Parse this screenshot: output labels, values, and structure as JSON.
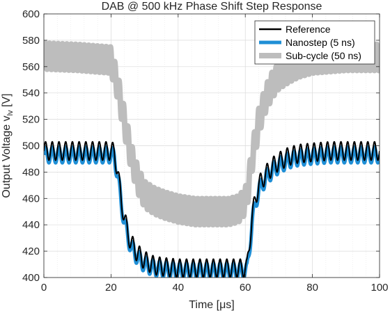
{
  "chart_data": {
    "type": "line",
    "title": "DAB @ 500 kHz Phase Shift Step Response",
    "xlabel": "Time [μs]",
    "ylabel": "Output Voltage v",
    "ylabel_subscript": "lv",
    "ylabel_unit": " [V]",
    "xlim": [
      0,
      100
    ],
    "ylim": [
      400,
      600
    ],
    "xticks": [
      0,
      20,
      40,
      60,
      80,
      100
    ],
    "yticks": [
      400,
      420,
      440,
      460,
      480,
      500,
      520,
      540,
      560,
      580,
      600
    ],
    "grid": true,
    "legend_position": "top-right",
    "series": [
      {
        "name": "Reference",
        "color": "#000000",
        "ripple_amplitude": 7,
        "ripple_period_us": 2,
        "x": [
          0,
          20,
          21,
          22,
          23,
          24,
          25,
          26,
          28,
          30,
          33,
          36,
          40,
          45,
          50,
          55,
          60,
          60.5,
          61,
          62,
          63,
          64,
          66,
          68,
          70,
          73,
          76,
          80,
          85,
          90,
          95,
          100
        ],
        "y": [
          496,
          496,
          495,
          480,
          460,
          445,
          434,
          426,
          418,
          413,
          409,
          408,
          407,
          407,
          407,
          407,
          407,
          407,
          420,
          445,
          460,
          470,
          478,
          484,
          488,
          492,
          494,
          495,
          496,
          496,
          496,
          496
        ]
      },
      {
        "name": "Nanostep (5 ns)",
        "color": "#1f8fd6",
        "ripple_amplitude": 6,
        "ripple_period_us": 2,
        "x": [
          0,
          20,
          21,
          22,
          23,
          24,
          25,
          26,
          28,
          30,
          33,
          36,
          40,
          45,
          50,
          55,
          60,
          60.5,
          61,
          62,
          63,
          64,
          66,
          68,
          70,
          73,
          76,
          80,
          85,
          90,
          95,
          100
        ],
        "y": [
          493,
          493,
          492,
          477,
          457,
          442,
          431,
          423,
          415,
          410,
          407,
          406,
          405,
          405,
          405,
          405,
          405,
          405,
          416,
          441,
          456,
          466,
          475,
          481,
          485,
          489,
          491,
          492,
          493,
          493,
          493,
          493
        ]
      },
      {
        "name": "Sub-cycle (50 ns)",
        "color": "#bdbdbd",
        "ripple_amplitude": 10,
        "ripple_period_us": 1.3,
        "x": [
          0,
          10,
          20,
          22,
          24,
          26,
          28,
          30,
          33,
          36,
          40,
          45,
          50,
          55,
          58,
          60,
          61,
          62,
          64,
          66,
          68,
          70,
          73,
          76,
          80,
          85,
          90,
          95,
          100
        ],
        "y": [
          568,
          567,
          565,
          545,
          518,
          492,
          474,
          463,
          458,
          455,
          452,
          450,
          450,
          450,
          452,
          458,
          470,
          490,
          518,
          535,
          546,
          553,
          558,
          562,
          565,
          566,
          567,
          567,
          567
        ]
      }
    ]
  }
}
